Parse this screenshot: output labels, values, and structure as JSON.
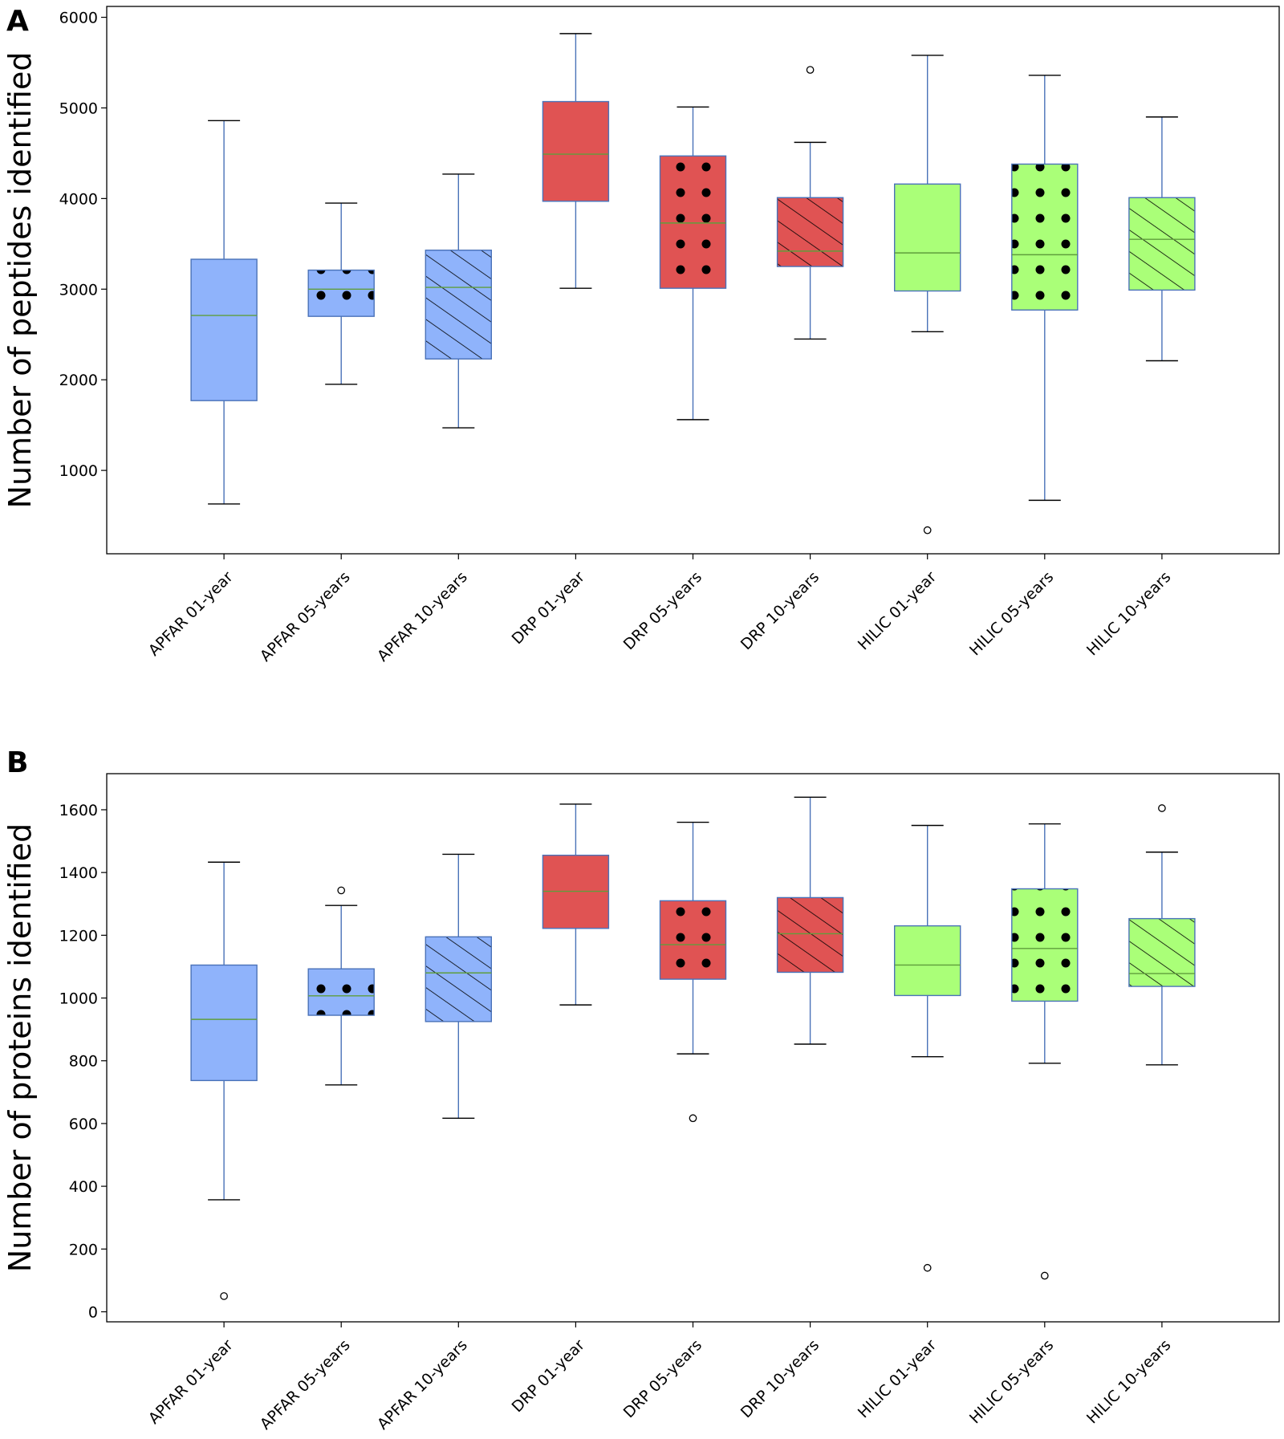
{
  "chart_data": [
    {
      "panel_label": "A",
      "type": "box",
      "ylabel": "Number of peptides identified",
      "xlabel": "",
      "ylim": [
        80,
        6120
      ],
      "yticks": [
        1000,
        2000,
        3000,
        4000,
        5000,
        6000
      ],
      "grid": false,
      "categories": [
        "APFAR 01-year",
        "APFAR 05-years",
        "APFAR 10-years",
        "DRP 01-year",
        "DRP 05-years",
        "DRP 10-years",
        "HILIC 01-year",
        "HILIC 05-years",
        "HILIC 10-years"
      ],
      "boxes": [
        {
          "whisker_low": 630,
          "q1": 1770,
          "median": 2710,
          "q3": 3330,
          "whisker_high": 4860,
          "outliers": []
        },
        {
          "whisker_low": 1950,
          "q1": 2700,
          "median": 3000,
          "q3": 3210,
          "whisker_high": 3950,
          "outliers": []
        },
        {
          "whisker_low": 1470,
          "q1": 2230,
          "median": 3020,
          "q3": 3430,
          "whisker_high": 4270,
          "outliers": []
        },
        {
          "whisker_low": 3010,
          "q1": 3970,
          "median": 4490,
          "q3": 5070,
          "whisker_high": 5820,
          "outliers": []
        },
        {
          "whisker_low": 1560,
          "q1": 3010,
          "median": 3730,
          "q3": 4470,
          "whisker_high": 5010,
          "outliers": []
        },
        {
          "whisker_low": 2450,
          "q1": 3250,
          "median": 3420,
          "q3": 4010,
          "whisker_high": 4620,
          "outliers": [
            5420
          ]
        },
        {
          "whisker_low": 2530,
          "q1": 2980,
          "median": 3400,
          "q3": 4160,
          "whisker_high": 5580,
          "outliers": [
            340
          ]
        },
        {
          "whisker_low": 670,
          "q1": 2770,
          "median": 3380,
          "q3": 4380,
          "whisker_high": 5360,
          "outliers": []
        },
        {
          "whisker_low": 2210,
          "q1": 2990,
          "median": 3550,
          "q3": 4010,
          "whisker_high": 4900,
          "outliers": []
        }
      ]
    },
    {
      "panel_label": "B",
      "type": "box",
      "ylabel": "Number of proteins identified",
      "xlabel": "",
      "ylim": [
        -32,
        1715
      ],
      "yticks": [
        0,
        200,
        400,
        600,
        800,
        1000,
        1200,
        1400,
        1600
      ],
      "grid": false,
      "categories": [
        "APFAR 01-year",
        "APFAR 05-years",
        "APFAR 10-years",
        "DRP 01-year",
        "DRP 05-years",
        "DRP 10-years",
        "HILIC 01-year",
        "HILIC 05-years",
        "HILIC 10-years"
      ],
      "boxes": [
        {
          "whisker_low": 357,
          "q1": 737,
          "median": 932,
          "q3": 1105,
          "whisker_high": 1433,
          "outliers": [
            50
          ]
        },
        {
          "whisker_low": 723,
          "q1": 945,
          "median": 1007,
          "q3": 1093,
          "whisker_high": 1295,
          "outliers": [
            1343
          ]
        },
        {
          "whisker_low": 617,
          "q1": 925,
          "median": 1080,
          "q3": 1195,
          "whisker_high": 1458,
          "outliers": []
        },
        {
          "whisker_low": 978,
          "q1": 1222,
          "median": 1340,
          "q3": 1455,
          "whisker_high": 1618,
          "outliers": []
        },
        {
          "whisker_low": 822,
          "q1": 1060,
          "median": 1170,
          "q3": 1310,
          "whisker_high": 1560,
          "outliers": [
            617
          ]
        },
        {
          "whisker_low": 853,
          "q1": 1082,
          "median": 1205,
          "q3": 1320,
          "whisker_high": 1640,
          "outliers": []
        },
        {
          "whisker_low": 813,
          "q1": 1008,
          "median": 1105,
          "q3": 1230,
          "whisker_high": 1550,
          "outliers": [
            140
          ]
        },
        {
          "whisker_low": 792,
          "q1": 990,
          "median": 1158,
          "q3": 1348,
          "whisker_high": 1555,
          "outliers": [
            115
          ]
        },
        {
          "whisker_low": 787,
          "q1": 1037,
          "median": 1078,
          "q3": 1253,
          "whisker_high": 1465,
          "outliers": [
            1605
          ]
        }
      ]
    }
  ],
  "style": {
    "method_colors": {
      "APFAR": "#8fb3fb",
      "DRP": "#e05353",
      "HILIC": "#aaff78"
    },
    "box_patterns": [
      "none",
      "dots",
      "hatch",
      "none",
      "dots",
      "hatch",
      "none",
      "dots",
      "hatch"
    ],
    "box_color_keys": [
      "APFAR",
      "APFAR",
      "APFAR",
      "DRP",
      "DRP",
      "DRP",
      "HILIC",
      "HILIC",
      "HILIC"
    ],
    "box_edge_color": "#4a72b8",
    "median_color": "#5f9e3c",
    "cap_color": "#000000"
  }
}
